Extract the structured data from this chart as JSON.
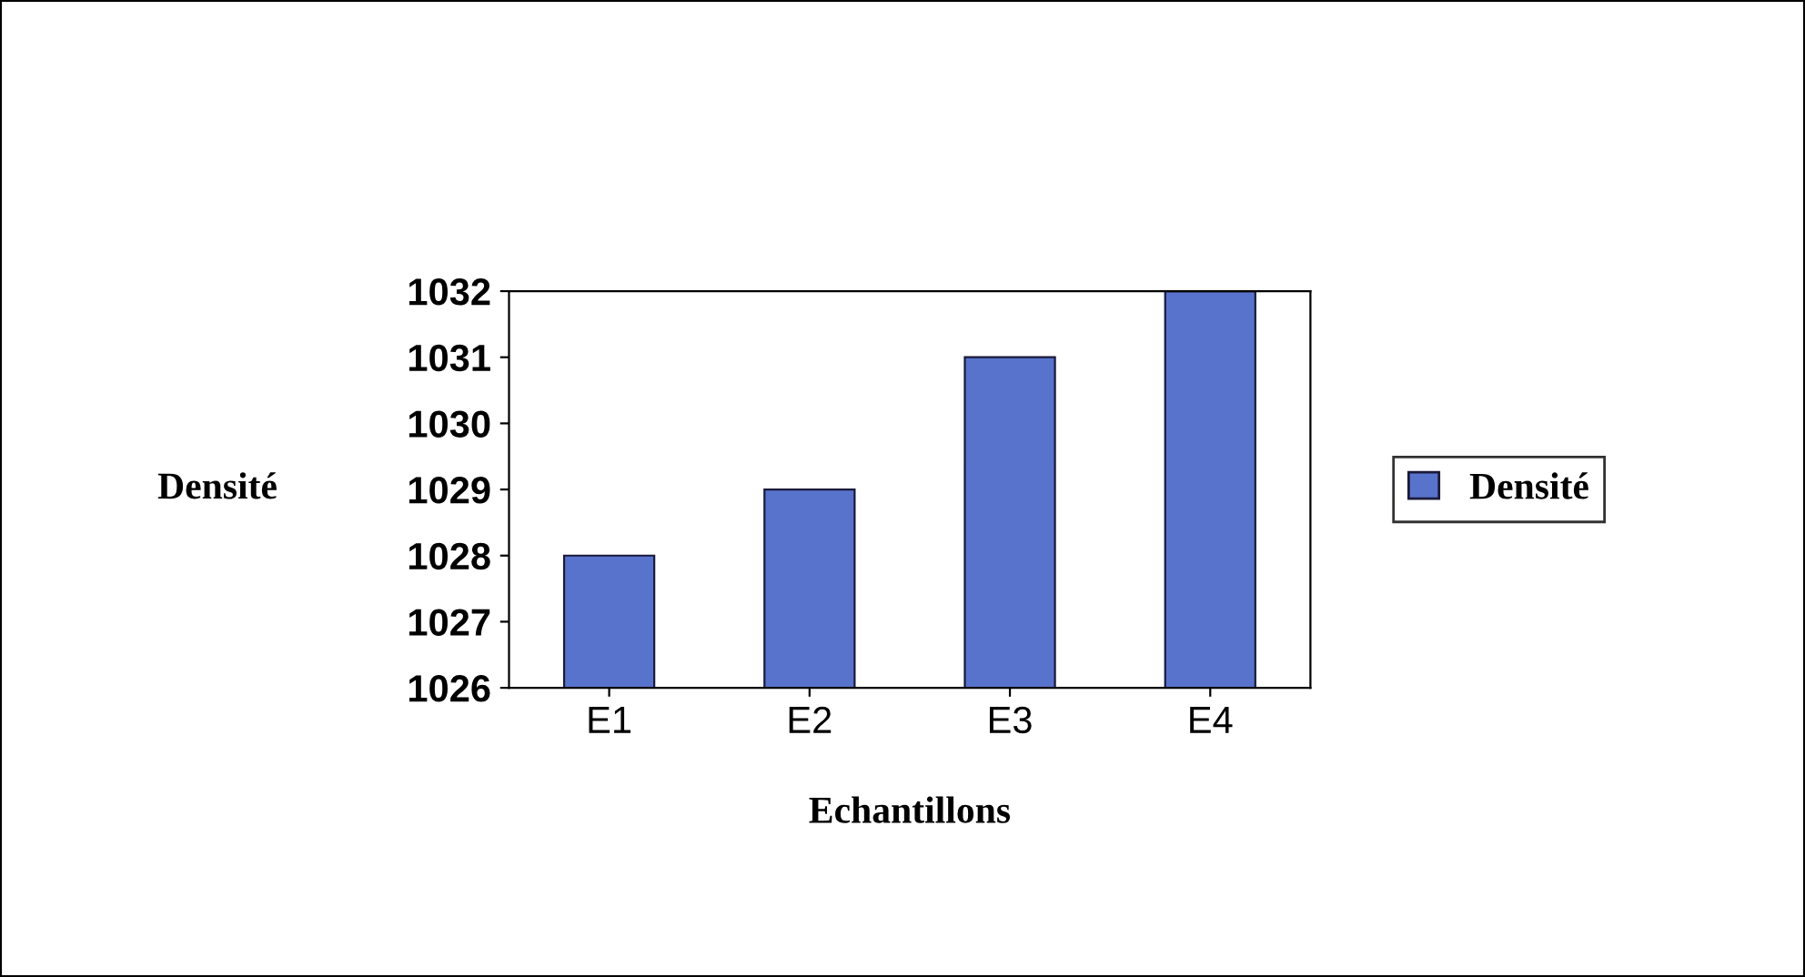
{
  "chart_data": {
    "type": "bar",
    "xlabel": "Echantillons",
    "ylabel": "Densité",
    "categories": [
      "E1",
      "E2",
      "E3",
      "E4"
    ],
    "series": [
      {
        "name": "Densité",
        "color": "#5873cc",
        "values": [
          1028,
          1029,
          1031,
          1032
        ]
      }
    ],
    "ylim": [
      1026,
      1032
    ],
    "yticks": [
      1026,
      1027,
      1028,
      1029,
      1030,
      1031,
      1032
    ],
    "grid": false,
    "legend": "right"
  }
}
